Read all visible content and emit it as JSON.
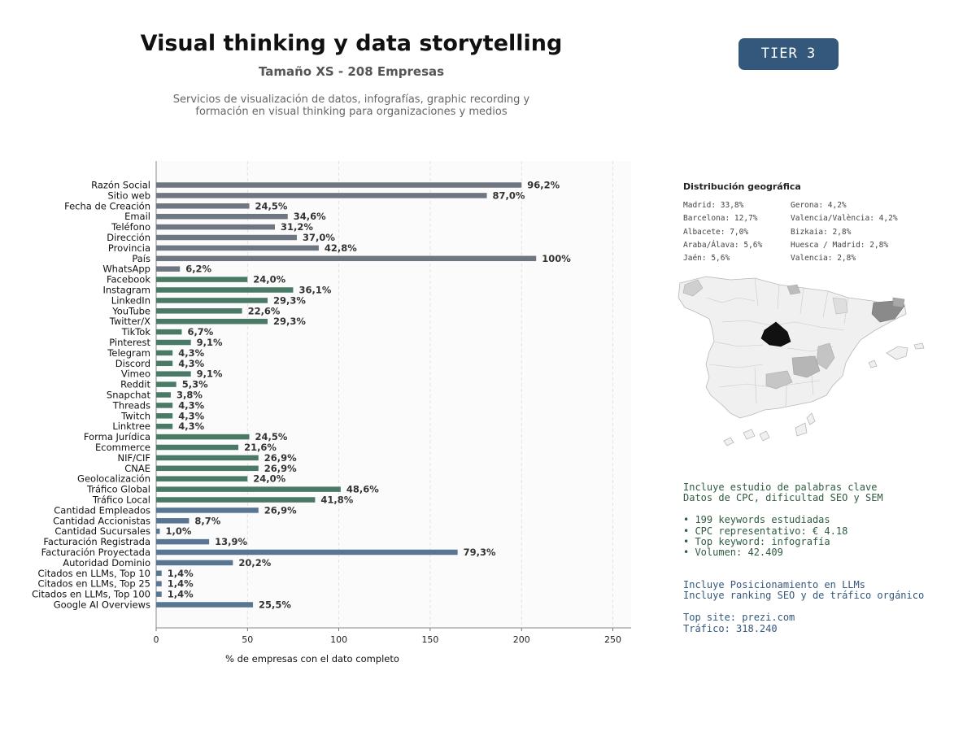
{
  "header": {
    "title": "Visual thinking y data storytelling",
    "subtitle": "Tamaño XS - 208 Empresas",
    "description_line1": "Servicios de visualización de datos, infografías, graphic recording y",
    "description_line2": "formación en visual thinking para organizaciones y medios",
    "tier": "TIER 3"
  },
  "colors": {
    "gray": "#6e7781",
    "green": "#4a7a66",
    "blue": "#587592",
    "tier_bg": "#33587c"
  },
  "chart_data": {
    "type": "bar",
    "orientation": "horizontal",
    "xlabel": "% de empresas con el dato completo",
    "xlim": [
      0,
      260
    ],
    "xticks": [
      0,
      50,
      100,
      150,
      200,
      250
    ],
    "grid": "vertical dashed",
    "categories": [
      "Razón Social",
      "Sitio web",
      "Fecha de Creación",
      "Email",
      "Teléfono",
      "Dirección",
      "Provincia",
      "País",
      "WhatsApp",
      "Facebook",
      "Instagram",
      "LinkedIn",
      "YouTube",
      "Twitter/X",
      "TikTok",
      "Pinterest",
      "Telegram",
      "Discord",
      "Vimeo",
      "Reddit",
      "Snapchat",
      "Threads",
      "Twitch",
      "Linktree",
      "Forma Jurídica",
      "Ecommerce",
      "NIF/CIF",
      "CNAE",
      "Geolocalización",
      "Tráfico Global",
      "Tráfico Local",
      "Cantidad Empleados",
      "Cantidad Accionistas",
      "Cantidad Sucursales",
      "Facturación Registrada",
      "Facturación Proyectada",
      "Autoridad Dominio",
      "Citados en LLMs, Top 10",
      "Citados en LLMs, Top 25",
      "Citados en LLMs, Top 100",
      "Google AI Overviews"
    ],
    "values": [
      200,
      181,
      51,
      72,
      65,
      77,
      89,
      208,
      13,
      50,
      75,
      61,
      47,
      61,
      14,
      19,
      9,
      9,
      19,
      11,
      8,
      9,
      9,
      9,
      51,
      45,
      56,
      56,
      50,
      101,
      87,
      56,
      18,
      2,
      29,
      165,
      42,
      3,
      3,
      3,
      53
    ],
    "labels": [
      "96,2%",
      "87,0%",
      "24,5%",
      "34,6%",
      "31,2%",
      "37,0%",
      "42,8%",
      "100%",
      "6,2%",
      "24,0%",
      "36,1%",
      "29,3%",
      "22,6%",
      "29,3%",
      "6,7%",
      "9,1%",
      "4,3%",
      "4,3%",
      "9,1%",
      "5,3%",
      "3,8%",
      "4,3%",
      "4,3%",
      "4,3%",
      "24,5%",
      "21,6%",
      "26,9%",
      "26,9%",
      "24,0%",
      "48,6%",
      "41,8%",
      "26,9%",
      "8,7%",
      "1,0%",
      "13,9%",
      "79,3%",
      "20,2%",
      "1,4%",
      "1,4%",
      "1,4%",
      "25,5%"
    ],
    "groups": [
      "gray",
      "gray",
      "gray",
      "gray",
      "gray",
      "gray",
      "gray",
      "gray",
      "gray",
      "green",
      "green",
      "green",
      "green",
      "green",
      "green",
      "green",
      "green",
      "green",
      "green",
      "green",
      "green",
      "green",
      "green",
      "green",
      "green",
      "green",
      "green",
      "green",
      "green",
      "green",
      "green",
      "blue",
      "blue",
      "blue",
      "blue",
      "blue",
      "blue",
      "blue",
      "blue",
      "blue",
      "blue"
    ]
  },
  "geo": {
    "title": "Distribución geográfica",
    "items": [
      "Madrid: 33,8%",
      "Barcelona: 12,7%",
      "Albacete: 7,0%",
      "Araba/Álava: 5,6%",
      "Jaén: 5,6%",
      "Gerona: 4,2%",
      "Valencia/València: 4,2%",
      "Bizkaia: 2,8%",
      "Huesca / Madrid: 2,8%",
      "Valencia: 2,8%"
    ]
  },
  "keywords": {
    "line1": "Incluye estudio de palabras clave",
    "line2": "Datos de CPC, dificultad SEO y SEM",
    "bullet1": "• 199 keywords estudiadas",
    "bullet2": "• CPC representativo: € 4.18",
    "bullet3": "• Top keyword: infografía",
    "bullet4": "• Volumen: 42.409"
  },
  "llm": {
    "line1": "Incluye Posicionamiento en LLMs",
    "line2": "Incluye ranking SEO y de tráfico orgánico",
    "top_site": "Top site: prezi.com",
    "traffic": "Tráfico: 318.240"
  }
}
